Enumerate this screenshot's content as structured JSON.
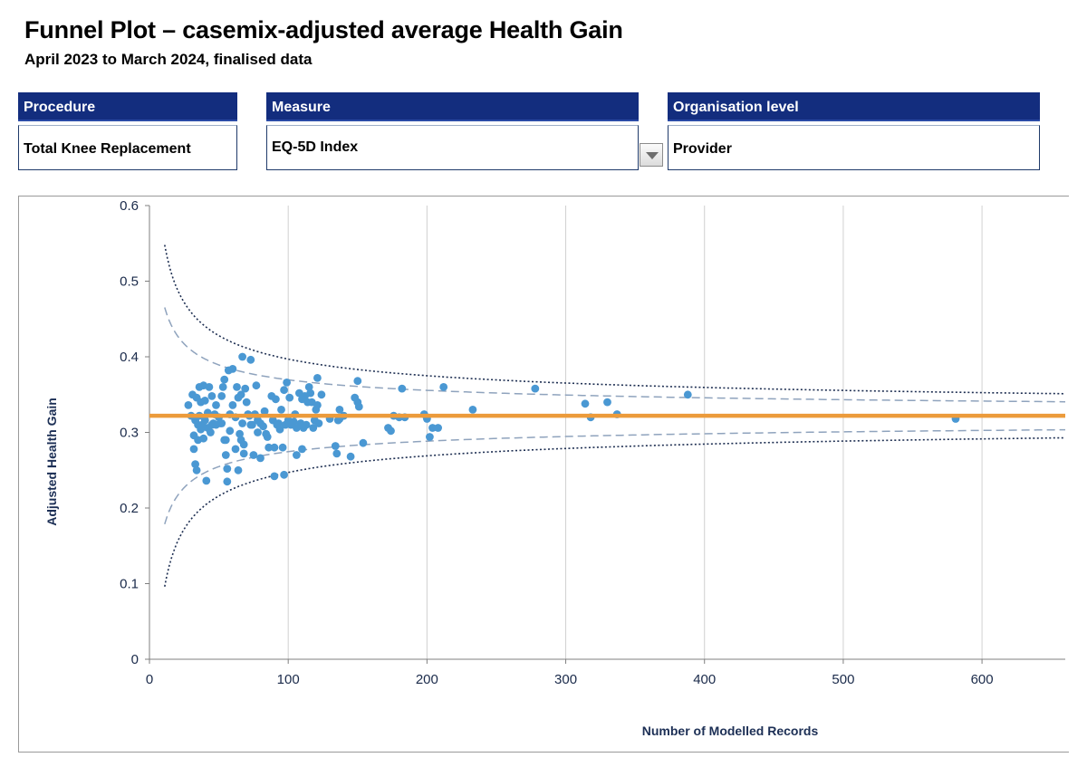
{
  "header": {
    "title": "Funnel Plot – casemix-adjusted average Health Gain",
    "subtitle": "April 2023 to March 2024, finalised data"
  },
  "filters": {
    "procedure": {
      "label": "Procedure",
      "value": "Total Knee Replacement"
    },
    "measure": {
      "label": "Measure",
      "value": "EQ-5D Index"
    },
    "organisation": {
      "label": "Organisation level",
      "value": "Provider"
    }
  },
  "icons": {
    "measure_dropdown": "chevron-down-icon"
  },
  "colors": {
    "header_bg": "#132d7e",
    "point": "#4a98d3",
    "mean_line": "#ec9b3b",
    "limit_95": "#8fa3bd",
    "limit_998": "#1e2f52"
  },
  "chart_data": {
    "type": "scatter",
    "title": "",
    "xlabel": "Number of Modelled Records",
    "ylabel": "Adjusted Health Gain",
    "xlim": [
      0,
      660
    ],
    "ylim": [
      0,
      0.6
    ],
    "xticks": [
      0,
      100,
      200,
      300,
      400,
      500,
      600
    ],
    "yticks": [
      0,
      0.1,
      0.2,
      0.3,
      0.4,
      0.5,
      0.6
    ],
    "grid": "vertical",
    "mean": 0.322,
    "control_limits": [
      {
        "name": "95% limit",
        "style": "dashed",
        "z": 1.96,
        "sd": 0.2425,
        "n_start": 11
      },
      {
        "name": "99.8% limit",
        "style": "dotted",
        "z": 3.09,
        "sd": 0.2425,
        "n_start": 11
      }
    ],
    "points": [
      [
        28,
        0.336
      ],
      [
        30,
        0.322
      ],
      [
        31,
        0.35
      ],
      [
        32,
        0.296
      ],
      [
        32,
        0.278
      ],
      [
        33,
        0.316
      ],
      [
        33,
        0.258
      ],
      [
        34,
        0.346
      ],
      [
        34,
        0.25
      ],
      [
        35,
        0.29
      ],
      [
        35,
        0.31
      ],
      [
        36,
        0.322
      ],
      [
        36,
        0.36
      ],
      [
        37,
        0.304
      ],
      [
        37,
        0.34
      ],
      [
        38,
        0.31
      ],
      [
        39,
        0.362
      ],
      [
        39,
        0.292
      ],
      [
        40,
        0.342
      ],
      [
        40,
        0.316
      ],
      [
        41,
        0.236
      ],
      [
        42,
        0.306
      ],
      [
        42,
        0.326
      ],
      [
        43,
        0.36
      ],
      [
        44,
        0.3
      ],
      [
        45,
        0.31
      ],
      [
        45,
        0.348
      ],
      [
        46,
        0.312
      ],
      [
        47,
        0.324
      ],
      [
        48,
        0.31
      ],
      [
        48,
        0.336
      ],
      [
        50,
        0.32
      ],
      [
        51,
        0.312
      ],
      [
        52,
        0.312
      ],
      [
        52,
        0.348
      ],
      [
        53,
        0.36
      ],
      [
        54,
        0.37
      ],
      [
        54,
        0.29
      ],
      [
        55,
        0.29
      ],
      [
        55,
        0.27
      ],
      [
        56,
        0.252
      ],
      [
        56,
        0.235
      ],
      [
        57,
        0.382
      ],
      [
        58,
        0.302
      ],
      [
        58,
        0.324
      ],
      [
        60,
        0.384
      ],
      [
        60,
        0.336
      ],
      [
        62,
        0.32
      ],
      [
        62,
        0.278
      ],
      [
        63,
        0.36
      ],
      [
        64,
        0.346
      ],
      [
        64,
        0.25
      ],
      [
        65,
        0.298
      ],
      [
        66,
        0.35
      ],
      [
        66,
        0.29
      ],
      [
        67,
        0.4
      ],
      [
        67,
        0.312
      ],
      [
        68,
        0.284
      ],
      [
        68,
        0.272
      ],
      [
        69,
        0.358
      ],
      [
        70,
        0.34
      ],
      [
        71,
        0.324
      ],
      [
        72,
        0.322
      ],
      [
        73,
        0.31
      ],
      [
        73,
        0.396
      ],
      [
        74,
        0.31
      ],
      [
        75,
        0.27
      ],
      [
        76,
        0.324
      ],
      [
        77,
        0.362
      ],
      [
        78,
        0.316
      ],
      [
        78,
        0.3
      ],
      [
        80,
        0.312
      ],
      [
        80,
        0.266
      ],
      [
        82,
        0.308
      ],
      [
        83,
        0.328
      ],
      [
        84,
        0.298
      ],
      [
        85,
        0.294
      ],
      [
        86,
        0.28
      ],
      [
        88,
        0.348
      ],
      [
        89,
        0.316
      ],
      [
        90,
        0.28
      ],
      [
        90,
        0.242
      ],
      [
        91,
        0.344
      ],
      [
        92,
        0.31
      ],
      [
        93,
        0.312
      ],
      [
        94,
        0.304
      ],
      [
        95,
        0.33
      ],
      [
        96,
        0.28
      ],
      [
        97,
        0.356
      ],
      [
        97,
        0.244
      ],
      [
        98,
        0.31
      ],
      [
        99,
        0.366
      ],
      [
        100,
        0.316
      ],
      [
        101,
        0.346
      ],
      [
        102,
        0.31
      ],
      [
        104,
        0.314
      ],
      [
        105,
        0.324
      ],
      [
        106,
        0.306
      ],
      [
        106,
        0.27
      ],
      [
        108,
        0.352
      ],
      [
        109,
        0.312
      ],
      [
        110,
        0.344
      ],
      [
        110,
        0.278
      ],
      [
        111,
        0.306
      ],
      [
        112,
        0.348
      ],
      [
        113,
        0.31
      ],
      [
        114,
        0.34
      ],
      [
        115,
        0.36
      ],
      [
        116,
        0.352
      ],
      [
        117,
        0.34
      ],
      [
        118,
        0.306
      ],
      [
        119,
        0.316
      ],
      [
        120,
        0.33
      ],
      [
        121,
        0.372
      ],
      [
        121,
        0.336
      ],
      [
        122,
        0.312
      ],
      [
        124,
        0.35
      ],
      [
        130,
        0.318
      ],
      [
        134,
        0.282
      ],
      [
        135,
        0.272
      ],
      [
        136,
        0.316
      ],
      [
        137,
        0.33
      ],
      [
        137,
        0.318
      ],
      [
        140,
        0.322
      ],
      [
        145,
        0.268
      ],
      [
        148,
        0.346
      ],
      [
        150,
        0.368
      ],
      [
        150,
        0.34
      ],
      [
        151,
        0.334
      ],
      [
        154,
        0.286
      ],
      [
        172,
        0.306
      ],
      [
        174,
        0.302
      ],
      [
        176,
        0.322
      ],
      [
        180,
        0.32
      ],
      [
        182,
        0.358
      ],
      [
        184,
        0.32
      ],
      [
        198,
        0.324
      ],
      [
        200,
        0.318
      ],
      [
        202,
        0.294
      ],
      [
        204,
        0.306
      ],
      [
        208,
        0.306
      ],
      [
        212,
        0.36
      ],
      [
        233,
        0.33
      ],
      [
        278,
        0.358
      ],
      [
        314,
        0.338
      ],
      [
        318,
        0.32
      ],
      [
        330,
        0.34
      ],
      [
        337,
        0.324
      ],
      [
        388,
        0.35
      ],
      [
        581,
        0.318
      ]
    ]
  }
}
